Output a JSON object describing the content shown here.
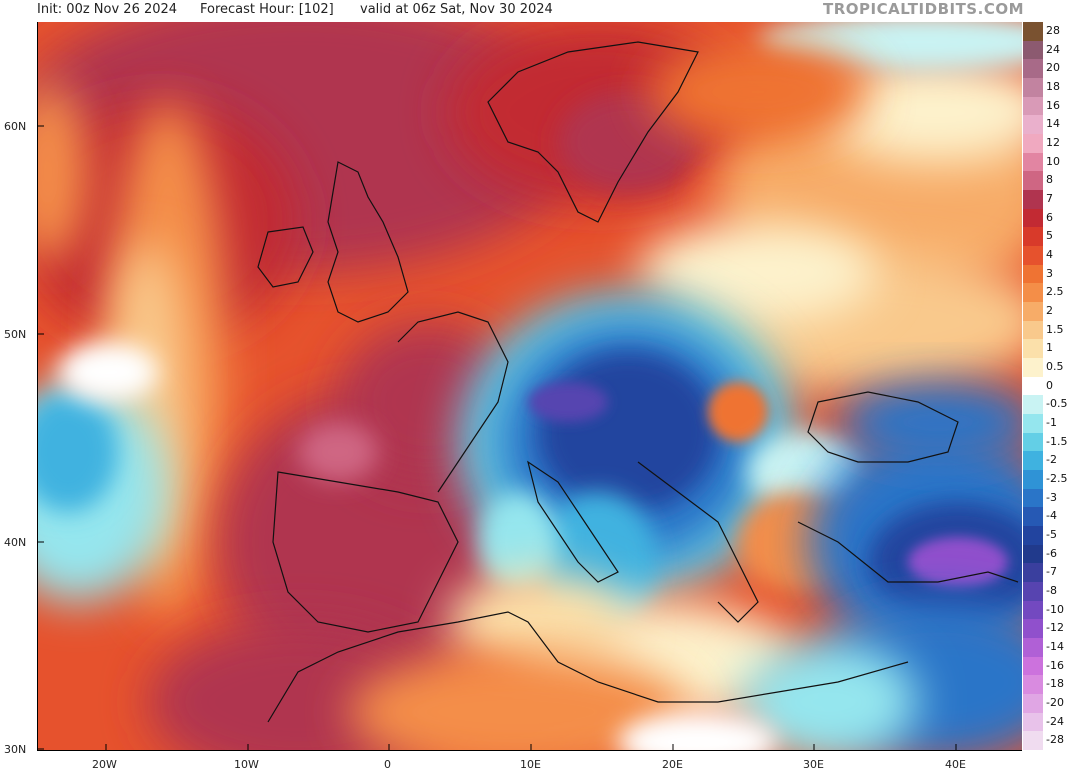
{
  "header": {
    "init": "Init: 00z Nov 26 2024",
    "forecast_hour": "Forecast Hour: [102]",
    "valid": "valid at 06z Sat, Nov 30 2024",
    "brand": "TROPICALTIDBITS.COM"
  },
  "axes": {
    "lat_labels": [
      "60N",
      "50N",
      "40N",
      "30N"
    ],
    "lon_labels": [
      "20W",
      "10W",
      "0",
      "10E",
      "20E",
      "30E",
      "40E"
    ]
  },
  "legend": {
    "items": [
      {
        "label": "28",
        "color": "#7a5230"
      },
      {
        "label": "24",
        "color": "#8c5a70"
      },
      {
        "label": "20",
        "color": "#a86a88"
      },
      {
        "label": "18",
        "color": "#c283a0"
      },
      {
        "label": "16",
        "color": "#d99ab7"
      },
      {
        "label": "14",
        "color": "#eab0cc"
      },
      {
        "label": "12",
        "color": "#f0a9c0"
      },
      {
        "label": "10",
        "color": "#e285a2"
      },
      {
        "label": "8",
        "color": "#cf6683"
      },
      {
        "label": "7",
        "color": "#b0344f"
      },
      {
        "label": "6",
        "color": "#c22a33"
      },
      {
        "label": "5",
        "color": "#d83a2a"
      },
      {
        "label": "4",
        "color": "#e6522d"
      },
      {
        "label": "3",
        "color": "#ef7333"
      },
      {
        "label": "2.5",
        "color": "#f48e48"
      },
      {
        "label": "2",
        "color": "#f7ac68"
      },
      {
        "label": "1.5",
        "color": "#f9c98c"
      },
      {
        "label": "1",
        "color": "#fbe0aa"
      },
      {
        "label": "0.5",
        "color": "#fdf2cc"
      },
      {
        "label": "0",
        "color": "#ffffff"
      },
      {
        "label": "-0.5",
        "color": "#c9f3f3"
      },
      {
        "label": "-1",
        "color": "#95e6ee"
      },
      {
        "label": "-1.5",
        "color": "#63cfe6"
      },
      {
        "label": "-2",
        "color": "#3fb2e0"
      },
      {
        "label": "-2.5",
        "color": "#2f93d6"
      },
      {
        "label": "-3",
        "color": "#2a75c8"
      },
      {
        "label": "-4",
        "color": "#2659b4"
      },
      {
        "label": "-5",
        "color": "#22449f"
      },
      {
        "label": "-6",
        "color": "#213a8c"
      },
      {
        "label": "-7",
        "color": "#3a3f9e"
      },
      {
        "label": "-8",
        "color": "#5744b0"
      },
      {
        "label": "-10",
        "color": "#7349c0"
      },
      {
        "label": "-12",
        "color": "#9050cc"
      },
      {
        "label": "-14",
        "color": "#b060d6"
      },
      {
        "label": "-16",
        "color": "#cc72dd"
      },
      {
        "label": "-18",
        "color": "#d98be0"
      },
      {
        "label": "-20",
        "color": "#e0a6e4"
      },
      {
        "label": "-24",
        "color": "#e8c2ea"
      },
      {
        "label": "-28",
        "color": "#f0dcf0"
      }
    ]
  }
}
